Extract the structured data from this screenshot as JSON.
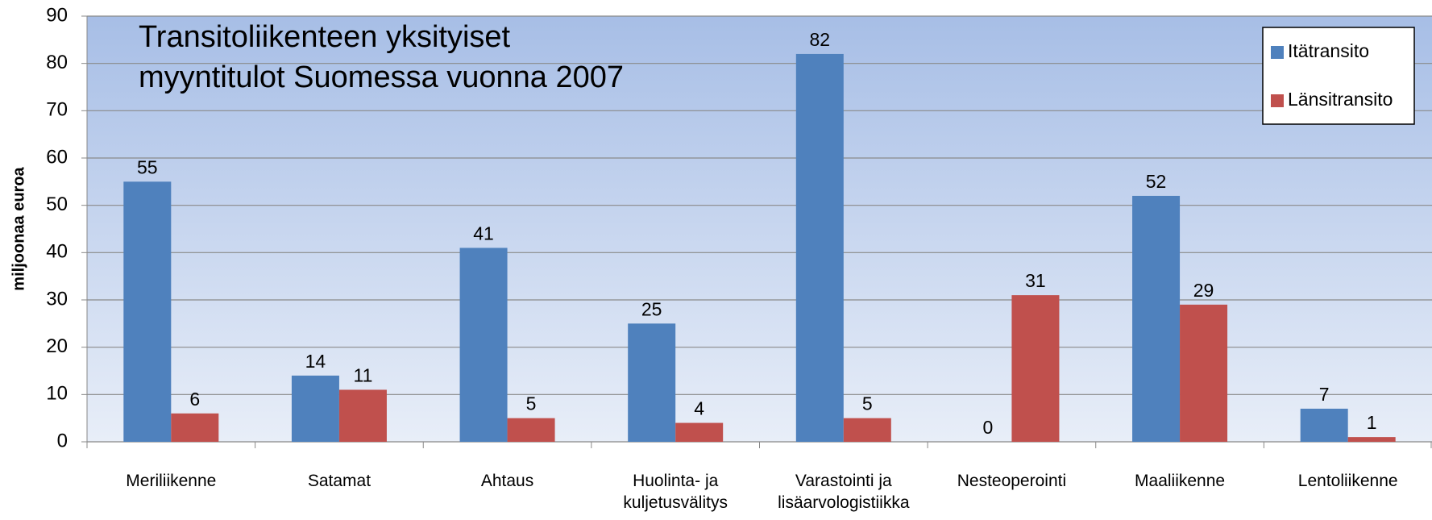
{
  "chart_data": {
    "type": "bar",
    "title": [
      "Transitoliikenteen yksityiset",
      "myyntitulot Suomessa vuonna 2007"
    ],
    "y_label": "miljoonaa euroa",
    "categories": [
      "Meriliikenne",
      "Satamat",
      "Ahtaus",
      "Huolinta- ja kuljetusvälitys",
      "Varastointi ja lisäarvologistiikka",
      "Nesteoperointi",
      "Maaliikenne",
      "Lentoliikenne"
    ],
    "series": [
      {
        "name": "Itätransito",
        "color": "#4f81bd",
        "values": [
          55,
          14,
          41,
          25,
          82,
          0,
          52,
          7
        ]
      },
      {
        "name": "Länsitransito",
        "color": "#c0504d",
        "values": [
          6,
          11,
          5,
          4,
          5,
          31,
          29,
          1
        ]
      }
    ],
    "ylim": [
      0,
      90
    ],
    "yticks": [
      0,
      10,
      20,
      30,
      40,
      50,
      60,
      70,
      80,
      90
    ],
    "grid": true,
    "legend": "top-right"
  }
}
